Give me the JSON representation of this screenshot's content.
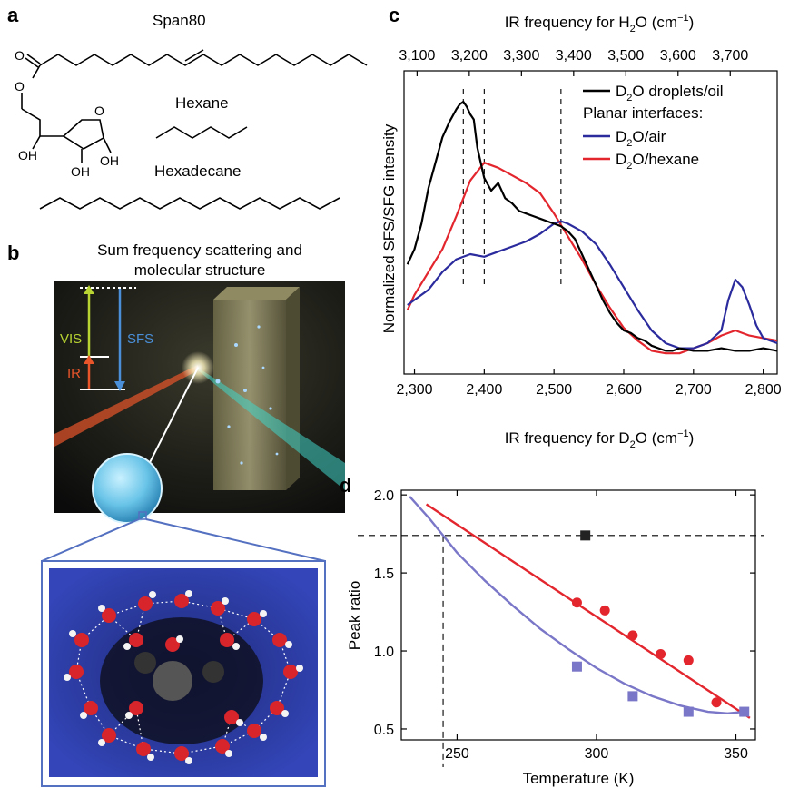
{
  "panels": {
    "a": {
      "letter": "a",
      "molecules": [
        {
          "name": "Span80"
        },
        {
          "name": "Hexane"
        },
        {
          "name": "Hexadecane"
        }
      ],
      "atoms": {
        "o": "O",
        "oh": "OH"
      }
    },
    "b": {
      "letter": "b",
      "title_line1": "Sum frequency scattering and",
      "title_line2": "molecular structure",
      "beam_labels": {
        "vis": "VIS",
        "sfs": "SFS",
        "ir": "IR"
      },
      "colors": {
        "vis": "#b8d432",
        "sfs": "#4a8fd8",
        "ir": "#e8552a",
        "frame": "#5470c0"
      }
    },
    "c": {
      "letter": "c"
    },
    "d": {
      "letter": "d"
    }
  },
  "chart_data": [
    {
      "id": "c",
      "type": "line",
      "xlabel": "IR frequency for D2O (cm−1)",
      "x2label": "IR frequency for H2O (cm−1)",
      "ylabel": "Normalized SFS/SFG intensity",
      "xlim": [
        2285,
        2820
      ],
      "x_ticks": [
        "2,300",
        "2,400",
        "2,500",
        "2,600",
        "2,700",
        "2,800"
      ],
      "x_tick_values": [
        2300,
        2400,
        2500,
        2600,
        2700,
        2800
      ],
      "x2_ticks": [
        "3,100",
        "3,200",
        "3,300",
        "3,400",
        "3,500",
        "3,600",
        "3,700"
      ],
      "x2_tick_values": [
        3100,
        3200,
        3300,
        3400,
        3500,
        3600,
        3700
      ],
      "x2lim": [
        3075,
        3790
      ],
      "ylim": [
        0,
        1.05
      ],
      "y_ticks_shown": false,
      "vlines_dashed": [
        2370,
        2400,
        2510
      ],
      "legend": {
        "placement": "top-right",
        "header": "Planar interfaces:",
        "entries": [
          {
            "series": 0,
            "text": "D2O droplets/oil"
          },
          {
            "series": 1,
            "text": "D2O/air"
          },
          {
            "series": 2,
            "text": "D2O/hexane"
          }
        ]
      },
      "series": [
        {
          "name": "D2O droplets/oil",
          "color": "#000000",
          "x": [
            2290,
            2300,
            2310,
            2320,
            2330,
            2340,
            2350,
            2360,
            2365,
            2370,
            2375,
            2380,
            2385,
            2390,
            2400,
            2410,
            2420,
            2430,
            2440,
            2450,
            2460,
            2470,
            2480,
            2490,
            2500,
            2510,
            2520,
            2530,
            2540,
            2550,
            2560,
            2570,
            2580,
            2590,
            2600,
            2610,
            2620,
            2630,
            2640,
            2650,
            2660,
            2670,
            2680,
            2700,
            2720,
            2740,
            2760,
            2780,
            2800,
            2820
          ],
          "y": [
            0.36,
            0.42,
            0.52,
            0.66,
            0.76,
            0.86,
            0.92,
            0.97,
            0.99,
            1.0,
            0.98,
            0.95,
            0.93,
            0.82,
            0.7,
            0.65,
            0.68,
            0.62,
            0.6,
            0.57,
            0.56,
            0.55,
            0.54,
            0.53,
            0.52,
            0.51,
            0.49,
            0.46,
            0.4,
            0.34,
            0.28,
            0.22,
            0.17,
            0.13,
            0.1,
            0.09,
            0.07,
            0.06,
            0.04,
            0.03,
            0.02,
            0.02,
            0.03,
            0.02,
            0.02,
            0.03,
            0.02,
            0.02,
            0.03,
            0.02
          ]
        },
        {
          "name": "D2O/air",
          "color": "#2b2b9e",
          "x": [
            2290,
            2300,
            2320,
            2340,
            2360,
            2380,
            2400,
            2420,
            2440,
            2460,
            2480,
            2500,
            2510,
            2520,
            2540,
            2560,
            2580,
            2600,
            2620,
            2640,
            2660,
            2680,
            2700,
            2720,
            2740,
            2750,
            2760,
            2770,
            2780,
            2790,
            2800,
            2810,
            2820
          ],
          "y": [
            0.2,
            0.22,
            0.26,
            0.33,
            0.38,
            0.4,
            0.39,
            0.41,
            0.43,
            0.45,
            0.48,
            0.52,
            0.53,
            0.52,
            0.49,
            0.44,
            0.36,
            0.27,
            0.18,
            0.1,
            0.05,
            0.03,
            0.03,
            0.05,
            0.1,
            0.22,
            0.3,
            0.27,
            0.2,
            0.12,
            0.07,
            0.06,
            0.05
          ]
        },
        {
          "name": "D2O/hexane",
          "color": "#e3262e",
          "x": [
            2290,
            2300,
            2320,
            2340,
            2360,
            2380,
            2400,
            2420,
            2440,
            2460,
            2480,
            2500,
            2520,
            2540,
            2560,
            2580,
            2600,
            2620,
            2640,
            2660,
            2680,
            2700,
            2720,
            2740,
            2760,
            2780,
            2800,
            2820
          ],
          "y": [
            0.18,
            0.24,
            0.33,
            0.42,
            0.55,
            0.69,
            0.76,
            0.74,
            0.71,
            0.68,
            0.64,
            0.56,
            0.47,
            0.38,
            0.28,
            0.19,
            0.11,
            0.06,
            0.02,
            0.01,
            0.01,
            0.03,
            0.05,
            0.08,
            0.1,
            0.08,
            0.07,
            0.06
          ]
        }
      ]
    },
    {
      "id": "d",
      "type": "scatter",
      "xlabel": "Temperature (K)",
      "ylabel": "Peak ratio",
      "xlim": [
        230,
        357
      ],
      "ylim": [
        0.43,
        2.03
      ],
      "x_ticks": [
        "250",
        "300",
        "350"
      ],
      "x_tick_values": [
        250,
        300,
        350
      ],
      "y_ticks": [
        "0.5",
        "1.0",
        "1.5",
        "2.0"
      ],
      "y_tick_values": [
        0.5,
        1.0,
        1.5,
        2.0
      ],
      "hline_dashed": 1.74,
      "vline_dashed": 245,
      "series": [
        {
          "name": "",
          "marker": "circle",
          "color": "#e3262e",
          "points": [
            [
              293,
              1.31
            ],
            [
              303,
              1.26
            ],
            [
              313,
              1.1
            ],
            [
              323,
              0.98
            ],
            [
              333,
              0.94
            ],
            [
              343,
              0.67
            ]
          ],
          "fit": [
            [
              239,
              1.94
            ],
            [
              355,
              0.57
            ]
          ]
        },
        {
          "name": "",
          "marker": "square",
          "color": "#7b77c8",
          "points": [
            [
              293,
              0.9
            ],
            [
              313,
              0.71
            ],
            [
              333,
              0.61
            ],
            [
              353,
              0.61
            ]
          ],
          "fit": [
            [
              233,
              1.99
            ],
            [
              240,
              1.85
            ],
            [
              250,
              1.63
            ],
            [
              260,
              1.45
            ],
            [
              270,
              1.29
            ],
            [
              280,
              1.14
            ],
            [
              290,
              1.01
            ],
            [
              300,
              0.89
            ],
            [
              310,
              0.79
            ],
            [
              320,
              0.71
            ],
            [
              330,
              0.65
            ],
            [
              340,
              0.61
            ],
            [
              347,
              0.6
            ],
            [
              353,
              0.61
            ]
          ]
        },
        {
          "name": "",
          "marker": "square",
          "color": "#222222",
          "points": [
            [
              296,
              1.74
            ]
          ]
        }
      ]
    }
  ]
}
